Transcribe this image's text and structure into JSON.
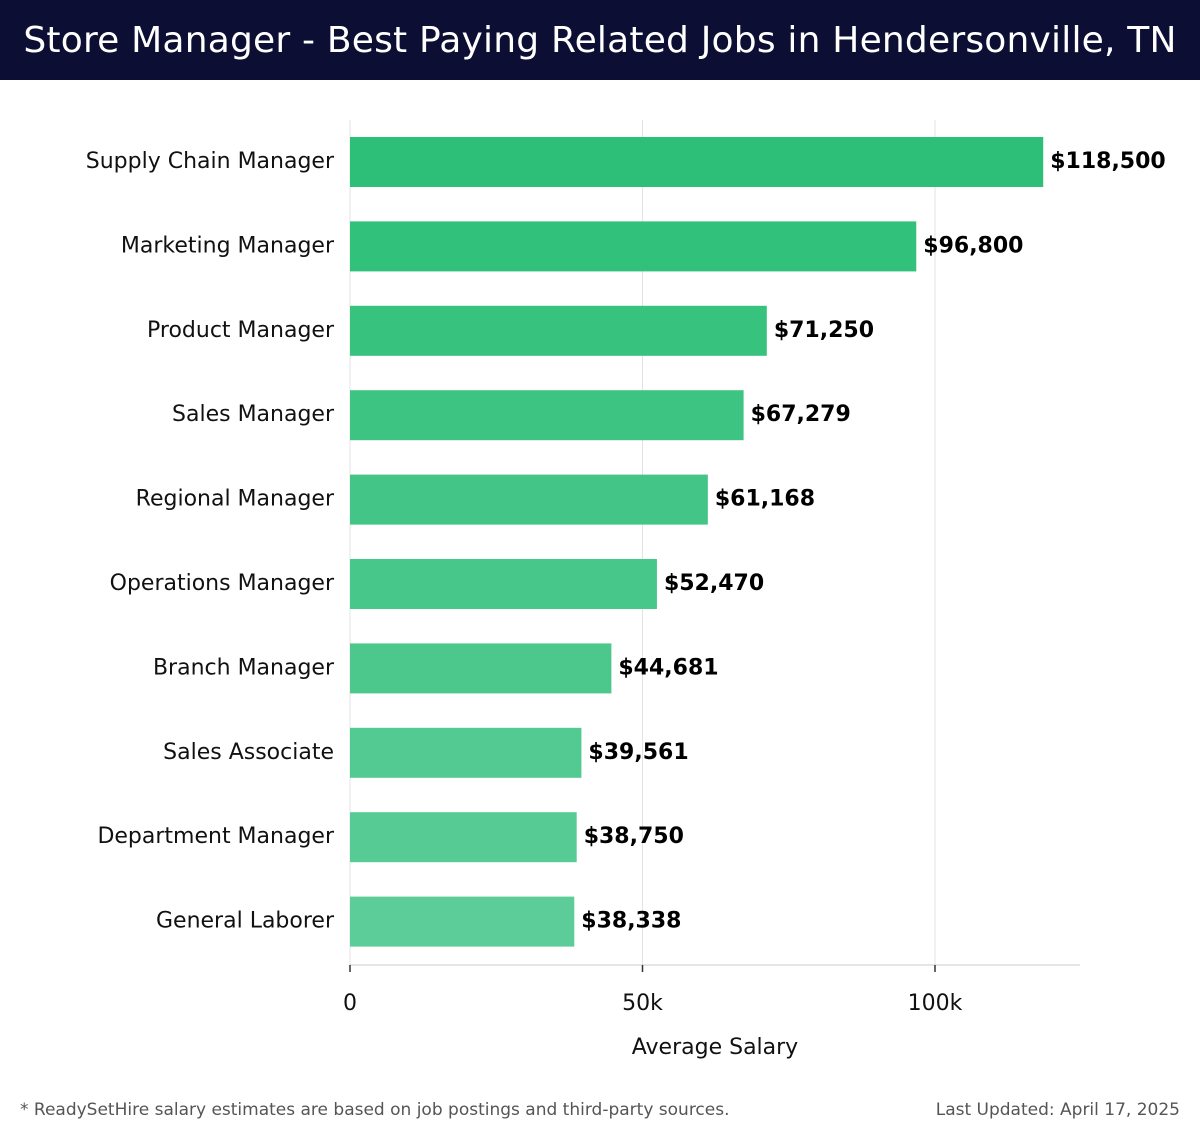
{
  "title": "Store Manager - Best Paying Related Jobs in Hendersonville, TN",
  "footer": {
    "note": "* ReadySetHire salary estimates are based on job postings and third-party sources.",
    "updated": "Last Updated: April 17, 2025"
  },
  "colors": {
    "header_bg": "#0c0e33",
    "bar_top": "#2dbf77",
    "bar_bottom": "#5ccd98"
  },
  "chart_data": {
    "type": "bar",
    "orientation": "horizontal",
    "categories": [
      "Supply Chain Manager",
      "Marketing Manager",
      "Product Manager",
      "Sales Manager",
      "Regional Manager",
      "Operations Manager",
      "Branch Manager",
      "Sales Associate",
      "Department Manager",
      "General Laborer"
    ],
    "values": [
      118500,
      96800,
      71250,
      67279,
      61168,
      52470,
      44681,
      39561,
      38750,
      38338
    ],
    "value_labels": [
      "$118,500",
      "$96,800",
      "$71,250",
      "$67,279",
      "$61,168",
      "$52,470",
      "$44,681",
      "$39,561",
      "$38,750",
      "$38,338"
    ],
    "xlabel": "Average Salary",
    "ylabel": "",
    "xlim": [
      0,
      124500
    ],
    "x_ticks": [
      0,
      50000,
      100000
    ],
    "x_tick_labels": [
      "0",
      "50k",
      "100k"
    ],
    "grid": true
  }
}
